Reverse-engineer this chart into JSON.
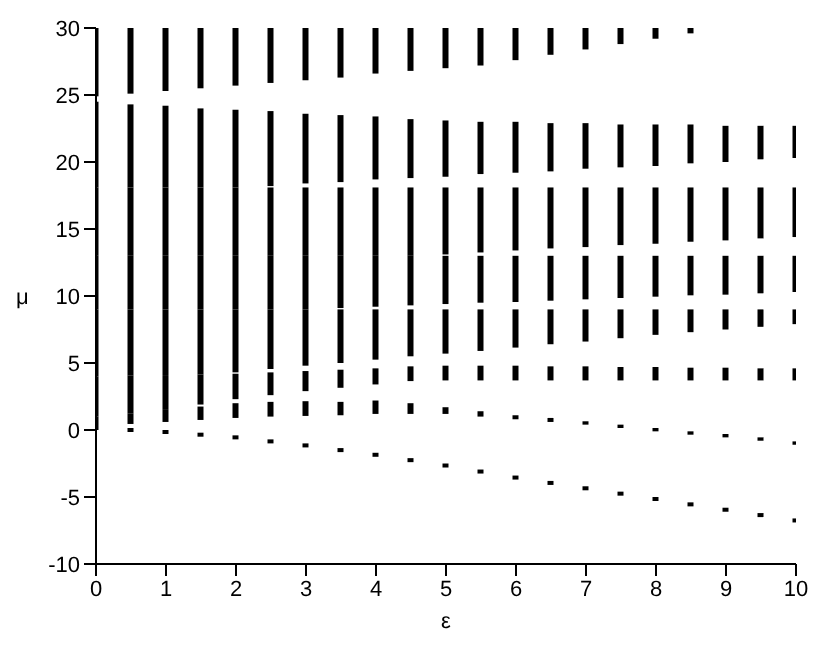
{
  "chart_data": {
    "type": "bar",
    "xlabel": "ε",
    "ylabel": "μ",
    "x": [
      0,
      0.5,
      1,
      1.5,
      2,
      2.5,
      3,
      3.5,
      4,
      4.5,
      5,
      5.5,
      6,
      6.5,
      7,
      7.5,
      8,
      8.5,
      9,
      9.5,
      10
    ],
    "series": [
      {
        "color": "#000000",
        "base": [
          0,
          -0.15,
          -0.3,
          -0.5,
          -0.7,
          -1.0,
          -1.3,
          -1.65,
          -2.0,
          -2.4,
          -2.8,
          -3.25,
          -3.7,
          -4.1,
          -4.5,
          -4.9,
          -5.3,
          -5.7,
          -6.1,
          -6.5,
          -6.9
        ],
        "values": [
          0.3,
          0.3,
          0.3,
          0.3,
          0.3,
          0.3,
          0.3,
          0.3,
          0.3,
          0.3,
          0.3,
          0.3,
          0.3,
          0.3,
          0.3,
          0.3,
          0.3,
          0.3,
          0.3,
          0.3,
          0.3
        ]
      },
      {
        "color": "#000000",
        "base": [
          0.3,
          0.45,
          0.6,
          0.75,
          0.9,
          1.0,
          1.05,
          1.1,
          1.2,
          1.2,
          1.2,
          1.0,
          0.8,
          0.6,
          0.4,
          0.15,
          -0.1,
          -0.35,
          -0.55,
          -0.8,
          -1.1
        ],
        "values": [
          0.7,
          0.8,
          0.9,
          1.0,
          1.1,
          1.1,
          1.1,
          1.0,
          1.0,
          0.8,
          0.5,
          0.4,
          0.3,
          0.3,
          0.25,
          0.25,
          0.25,
          0.25,
          0.25,
          0.25,
          0.25
        ]
      },
      {
        "color": "#000000",
        "base": [
          1.0,
          1.25,
          1.5,
          1.9,
          2.3,
          2.6,
          2.9,
          3.15,
          3.4,
          3.65,
          3.7,
          3.7,
          3.7,
          3.7,
          3.7,
          3.7,
          3.7,
          3.7,
          3.7,
          3.7,
          3.7
        ],
        "values": [
          3.0,
          2.8,
          2.6,
          2.25,
          1.9,
          1.7,
          1.5,
          1.35,
          1.2,
          1.1,
          1.1,
          1.1,
          1.1,
          1.05,
          1.05,
          1.0,
          1.0,
          0.95,
          0.95,
          0.9,
          0.9
        ]
      },
      {
        "color": "#000000",
        "base": [
          4.0,
          4.05,
          4.1,
          4.15,
          4.3,
          4.55,
          4.8,
          5.0,
          5.25,
          5.5,
          5.7,
          5.9,
          6.15,
          6.4,
          6.6,
          6.85,
          7.1,
          7.3,
          7.5,
          7.7,
          7.9
        ],
        "values": [
          5.0,
          4.95,
          4.9,
          4.85,
          4.7,
          4.45,
          4.2,
          4.0,
          3.75,
          3.5,
          3.3,
          3.1,
          2.85,
          2.6,
          2.4,
          2.15,
          1.9,
          1.7,
          1.5,
          1.3,
          1.1
        ]
      },
      {
        "color": "#000000",
        "base": [
          9.0,
          9.0,
          9.0,
          9.0,
          9.0,
          9.0,
          9.0,
          9.1,
          9.2,
          9.3,
          9.4,
          9.5,
          9.55,
          9.65,
          9.75,
          9.85,
          9.95,
          10.05,
          10.1,
          10.2,
          10.3
        ],
        "values": [
          4.0,
          4.0,
          4.0,
          4.0,
          4.0,
          4.0,
          4.0,
          3.9,
          3.8,
          3.7,
          3.6,
          3.5,
          3.45,
          3.35,
          3.25,
          3.15,
          3.05,
          2.95,
          2.9,
          2.8,
          2.7
        ]
      },
      {
        "color": "#000000",
        "base": [
          13.0,
          13.0,
          13.0,
          13.0,
          13.0,
          13.0,
          13.0,
          13.0,
          13.0,
          13.0,
          13.1,
          13.25,
          13.4,
          13.55,
          13.65,
          13.8,
          13.9,
          14.05,
          14.15,
          14.3,
          14.4
        ],
        "values": [
          5.1,
          5.1,
          5.1,
          5.1,
          5.1,
          5.1,
          5.1,
          5.1,
          5.1,
          5.1,
          5.0,
          4.85,
          4.7,
          4.55,
          4.45,
          4.3,
          4.2,
          4.05,
          3.95,
          3.8,
          3.7
        ]
      },
      {
        "color": "#000000",
        "base": [
          18.1,
          18.1,
          18.1,
          18.1,
          18.1,
          18.2,
          18.4,
          18.5,
          18.7,
          18.8,
          18.9,
          19.1,
          19.2,
          19.3,
          19.5,
          19.6,
          19.7,
          19.9,
          20.0,
          20.2,
          20.3
        ],
        "values": [
          6.4,
          6.2,
          6.1,
          5.9,
          5.8,
          5.6,
          5.2,
          5.0,
          4.7,
          4.4,
          4.2,
          3.9,
          3.8,
          3.6,
          3.4,
          3.2,
          3.1,
          2.9,
          2.7,
          2.5,
          2.4
        ]
      },
      {
        "color": "#000000",
        "base": [
          24.9,
          25.1,
          25.3,
          25.5,
          25.7,
          25.9,
          26.1,
          26.3,
          26.6,
          26.8,
          27.0,
          27.2,
          27.6,
          28.0,
          28.4,
          28.8,
          29.2,
          29.6,
          null,
          null,
          null
        ],
        "values": [
          5.1,
          4.9,
          4.7,
          4.5,
          4.3,
          4.1,
          3.9,
          3.7,
          3.4,
          3.2,
          3.0,
          2.8,
          2.4,
          2.0,
          1.6,
          1.2,
          0.8,
          0.4,
          null,
          null,
          null
        ]
      }
    ],
    "xlim": [
      0,
      10
    ],
    "xticks": [
      0,
      1,
      2,
      3,
      4,
      5,
      6,
      7,
      8,
      9,
      10
    ],
    "ylim": [
      -10,
      30
    ],
    "yticks": [
      -10,
      -5,
      0,
      5,
      10,
      15,
      20,
      25,
      30
    ],
    "grid": false
  }
}
